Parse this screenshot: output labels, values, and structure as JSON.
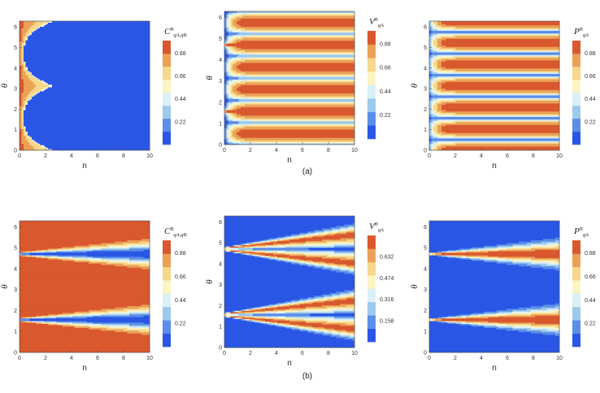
{
  "colors": {
    "levels": [
      "#2a56e6",
      "#5a8ee8",
      "#9cc9ec",
      "#d9f0f6",
      "#fbf4c3",
      "#f6d78c",
      "#eba156",
      "#d9582e"
    ],
    "frame": "#555555"
  },
  "captions": [
    "(a)",
    "(b)"
  ],
  "chart_data": [
    {
      "type": "heatmap",
      "row": 0,
      "col": 0,
      "xlabel": "n",
      "ylabel": "θ",
      "xlim": [
        0,
        10
      ],
      "ylim": [
        0,
        6.283
      ],
      "xticks": [
        "0",
        "2",
        "4",
        "6",
        "8",
        "10"
      ],
      "yticks": [
        "0",
        "1",
        "2",
        "3",
        "4",
        "5",
        "6"
      ],
      "colorbar": {
        "title": "C",
        "sup": "n",
        "sub": "qA,qB",
        "ticks": [
          "0.22",
          "0.44",
          "0.66",
          "0.88"
        ],
        "max": 1.0
      },
      "func": "a_C"
    },
    {
      "type": "heatmap",
      "row": 0,
      "col": 1,
      "xlabel": "n",
      "ylabel": "θ",
      "xlim": [
        0,
        10
      ],
      "ylim": [
        0,
        6.283
      ],
      "xticks": [
        "0",
        "2",
        "4",
        "6",
        "8",
        "10"
      ],
      "yticks": [
        "0",
        "1",
        "2",
        "3",
        "4",
        "5",
        "6"
      ],
      "colorbar": {
        "title": "V",
        "sup": "n",
        "sub": "qA",
        "ticks": [
          "0.22",
          "0.44",
          "0.66",
          "0.88"
        ],
        "max": 1.0
      },
      "func": "a_V"
    },
    {
      "type": "heatmap",
      "row": 0,
      "col": 2,
      "xlabel": "n",
      "ylabel": "θ",
      "xlim": [
        0,
        10
      ],
      "ylim": [
        0,
        6.283
      ],
      "xticks": [
        "0",
        "2",
        "4",
        "6",
        "8",
        "10"
      ],
      "yticks": [
        "0",
        "1",
        "2",
        "3",
        "4",
        "5",
        "6"
      ],
      "colorbar": {
        "title": "P",
        "sup": "n",
        "sub": "qA",
        "ticks": [
          "0.22",
          "0.44",
          "0.66",
          "0.88"
        ],
        "max": 1.0
      },
      "func": "a_P"
    },
    {
      "type": "heatmap",
      "row": 1,
      "col": 0,
      "xlabel": "n",
      "ylabel": "θ",
      "xlim": [
        0,
        10
      ],
      "ylim": [
        0,
        6.283
      ],
      "xticks": [
        "0",
        "2",
        "4",
        "6",
        "8",
        "10"
      ],
      "yticks": [
        "0",
        "1",
        "2",
        "3",
        "4",
        "5",
        "6"
      ],
      "colorbar": {
        "title": "C",
        "sup": "n",
        "sub": "qA,qB",
        "ticks": [
          "0.22",
          "0.44",
          "0.66",
          "0.88"
        ],
        "max": 1.0
      },
      "func": "b_C"
    },
    {
      "type": "heatmap",
      "row": 1,
      "col": 1,
      "xlabel": "n",
      "ylabel": "θ",
      "xlim": [
        0,
        10
      ],
      "ylim": [
        0,
        6.283
      ],
      "xticks": [
        "0",
        "2",
        "4",
        "6",
        "8",
        "10"
      ],
      "yticks": [
        "0",
        "1",
        "2",
        "3",
        "4",
        "5",
        "6"
      ],
      "colorbar": {
        "title": "V",
        "sup": "n",
        "sub": "qA",
        "ticks": [
          "0.158",
          "0.316",
          "0.474",
          "0.632"
        ],
        "max": 0.79
      },
      "func": "b_V"
    },
    {
      "type": "heatmap",
      "row": 1,
      "col": 2,
      "xlabel": "n",
      "ylabel": "θ",
      "xlim": [
        0,
        10
      ],
      "ylim": [
        0,
        6.283
      ],
      "xticks": [
        "0",
        "2",
        "4",
        "6",
        "8",
        "10"
      ],
      "yticks": [
        "0",
        "1",
        "2",
        "3",
        "4",
        "5",
        "6"
      ],
      "colorbar": {
        "title": "P",
        "sup": "n",
        "sub": "qA",
        "ticks": [
          "0.22",
          "0.44",
          "0.66",
          "0.88"
        ],
        "max": 1.0
      },
      "func": "b_P"
    }
  ]
}
